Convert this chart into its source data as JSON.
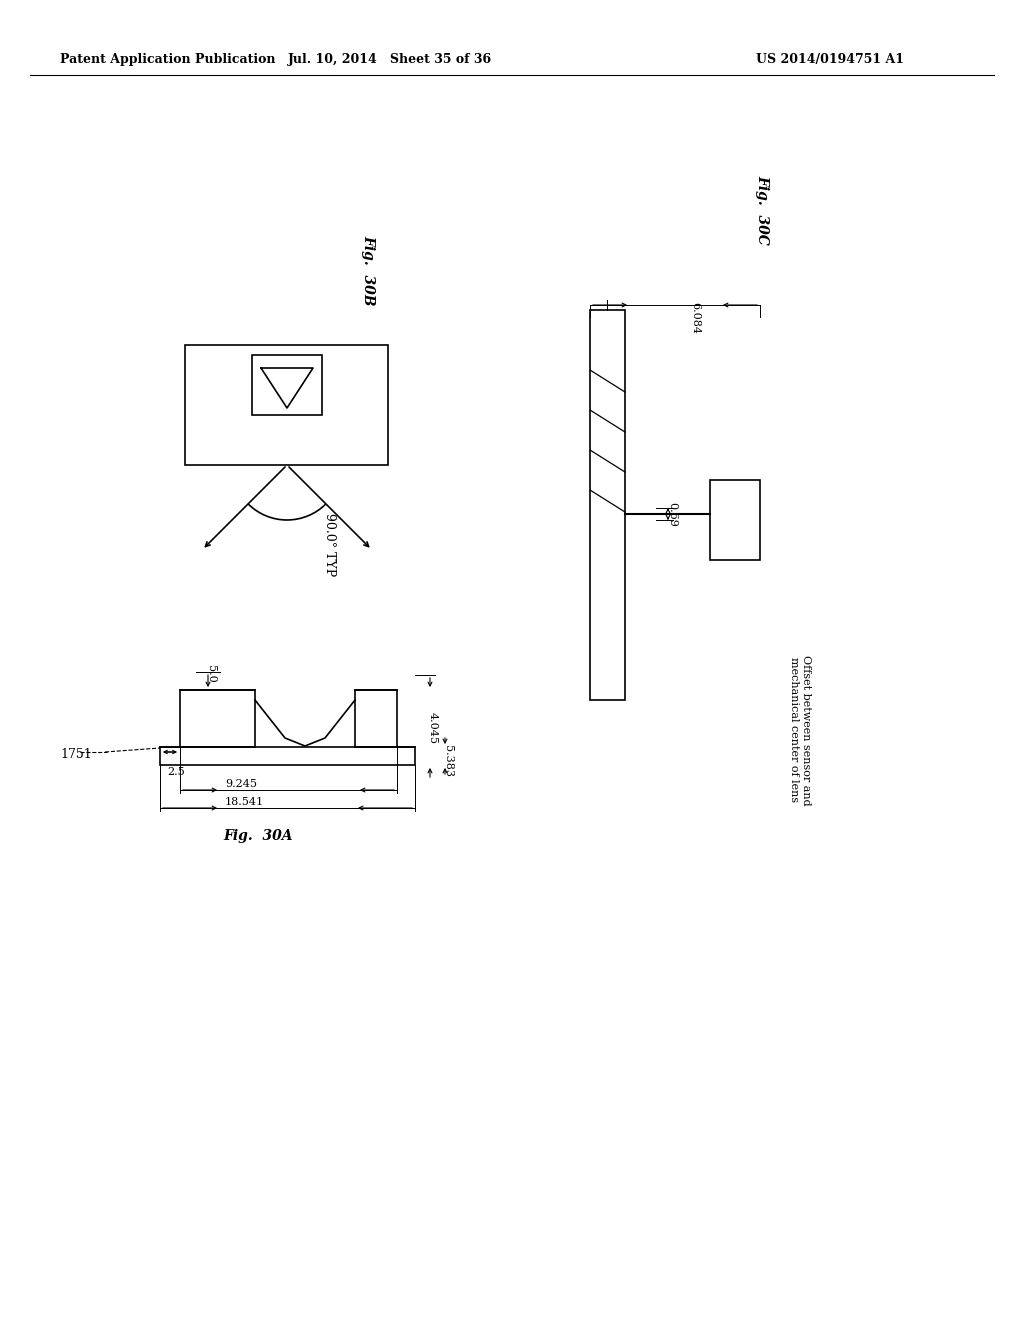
{
  "header_left": "Patent Application Publication",
  "header_center": "Jul. 10, 2014   Sheet 35 of 36",
  "header_right": "US 2014/0194751 A1",
  "bg_color": "#ffffff",
  "text_color": "#000000",
  "fig_30A_label": "Fig.  30A",
  "fig_30B_label": "Fig.  30B",
  "fig_30C_label": "Fig.  30C",
  "dim_5_0": "5.0",
  "dim_4_045": "4.045",
  "dim_5_383": "5.383",
  "dim_2_5": "2.5",
  "dim_9_245": "9.245",
  "dim_18_541": "18.541",
  "dim_6_084": "6.084",
  "dim_0_69": "0.69",
  "label_1751": "1751",
  "angle_label": "90.0° TYP",
  "offset_label": "Offset between sensor and\nmechanical center of lens"
}
